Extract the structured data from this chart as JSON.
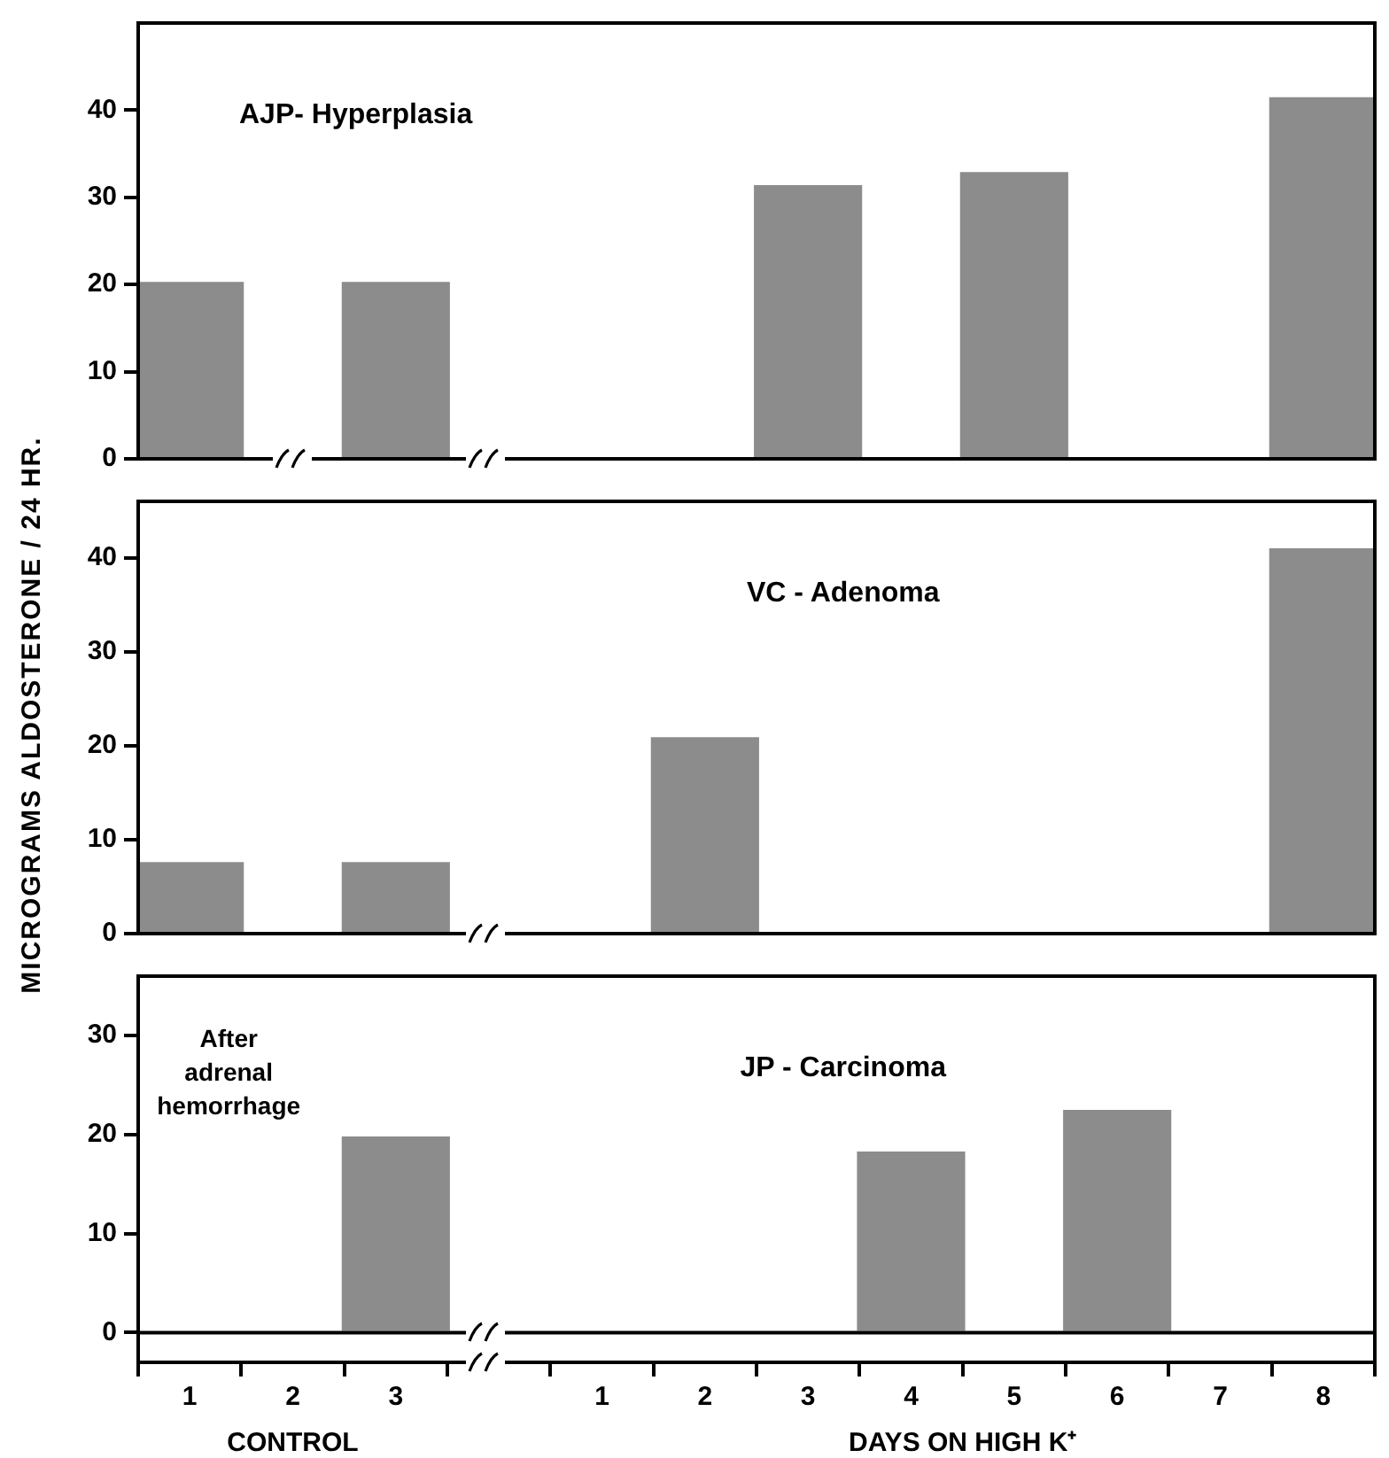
{
  "chart_data": [
    {
      "type": "bar",
      "title": "AJP- Hyperplasia",
      "categories": [
        "1",
        "2",
        "3",
        null,
        "1",
        "2",
        "3",
        "4",
        "5",
        "6",
        "7",
        "8"
      ],
      "values": [
        20.3,
        null,
        20.3,
        null,
        null,
        null,
        31.4,
        null,
        32.9,
        null,
        null,
        41.5
      ],
      "color": "#8c8c8c",
      "ylim": [
        0,
        50
      ],
      "yticks": [
        0,
        10,
        20,
        30,
        40
      ],
      "grid": false,
      "tick_labels": "y"
    },
    {
      "type": "bar",
      "title": "VC - Adenoma",
      "ylabel": "MICROGRAMS ALDOSTERONE / 24 HR.",
      "categories": [
        "1",
        "2",
        "3",
        null,
        "1",
        "2",
        "3",
        "4",
        "5",
        "6",
        "7",
        "8"
      ],
      "values": [
        7.6,
        null,
        7.6,
        null,
        null,
        20.9,
        null,
        null,
        null,
        null,
        null,
        41
      ],
      "color": "#8c8c8c",
      "ylim": [
        0,
        46
      ],
      "yticks": [
        0,
        10,
        20,
        30,
        40
      ],
      "grid": false,
      "tick_labels": "y"
    },
    {
      "type": "bar",
      "title": "JP - Carcinoma",
      "categories": [
        "1",
        "2",
        "3",
        null,
        "1",
        "2",
        "3",
        "4",
        "5",
        "6",
        "7",
        "8"
      ],
      "values": [
        null,
        null,
        19.8,
        null,
        null,
        null,
        null,
        18.3,
        null,
        22.5,
        null,
        null
      ],
      "color": "#8c8c8c",
      "ylim": [
        -3,
        36
      ],
      "yticks": [
        0,
        10,
        20,
        30
      ],
      "grid": false,
      "ref_lines": [
        {
          "axis": "y",
          "value": 0,
          "color": "#000000"
        }
      ],
      "annotations": [
        "After adrenal hemorrhage",
        "CONTROL",
        "DAYS ON HIGH K⁺"
      ]
    }
  ]
}
